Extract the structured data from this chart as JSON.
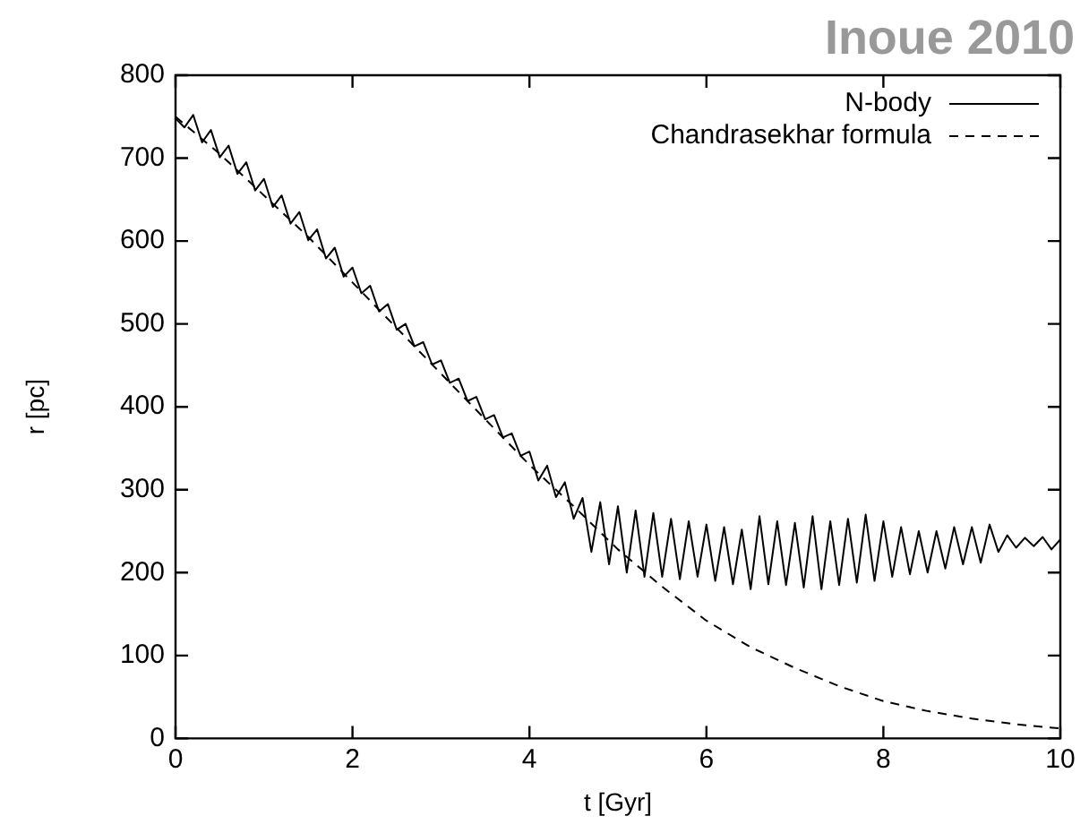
{
  "chart_data": {
    "type": "line",
    "xlabel": "t [Gyr]",
    "ylabel": "r [pc]",
    "annotations": [
      "Inoue 2010"
    ],
    "xlim": [
      0,
      10
    ],
    "xticks": [
      0,
      2,
      4,
      6,
      8,
      10
    ],
    "ylim": [
      0,
      800
    ],
    "yticks": [
      0,
      100,
      200,
      300,
      400,
      500,
      600,
      700,
      800
    ],
    "grid": false,
    "legend": "top right",
    "marker": "none",
    "series": [
      {
        "name": "N-body",
        "color": "#000000",
        "line_style": "solid",
        "x": [
          0,
          0.1,
          0.2,
          0.3,
          0.4,
          0.5,
          0.6,
          0.7,
          0.8,
          0.9,
          1,
          1.1,
          1.2,
          1.3,
          1.4,
          1.5,
          1.6,
          1.7,
          1.8,
          1.9,
          2,
          2.1,
          2.2,
          2.3,
          2.4,
          2.5,
          2.6,
          2.7,
          2.8,
          2.9,
          3,
          3.1,
          3.2,
          3.3,
          3.4,
          3.5,
          3.6,
          3.7,
          3.8,
          3.9,
          4,
          4.1,
          4.2,
          4.3,
          4.4,
          4.5,
          4.6,
          4.7,
          4.8,
          4.9,
          5,
          5.1,
          5.2,
          5.3,
          5.4,
          5.5,
          5.6,
          5.7,
          5.8,
          5.9,
          6,
          6.1,
          6.2,
          6.3,
          6.4,
          6.5,
          6.6,
          6.7,
          6.8,
          6.9,
          7,
          7.1,
          7.2,
          7.3,
          7.4,
          7.5,
          7.6,
          7.7,
          7.8,
          7.9,
          8,
          8.1,
          8.2,
          8.3,
          8.4,
          8.5,
          8.6,
          8.7,
          8.8,
          8.9,
          9,
          9.1,
          9.2,
          9.3,
          9.4,
          9.5,
          9.6,
          9.7,
          9.8,
          9.9,
          10
        ],
        "values": [
          748,
          737,
          752,
          719,
          734,
          701,
          715,
          681,
          695,
          661,
          675,
          641,
          655,
          621,
          635,
          601,
          614,
          579,
          592,
          557,
          568,
          537,
          546,
          515,
          524,
          493,
          500,
          473,
          478,
          451,
          456,
          429,
          434,
          407,
          412,
          385,
          390,
          363,
          368,
          341,
          346,
          311,
          329,
          291,
          309,
          265,
          290,
          225,
          285,
          210,
          280,
          200,
          275,
          195,
          272,
          195,
          265,
          192,
          262,
          195,
          258,
          190,
          255,
          186,
          252,
          180,
          268,
          186,
          262,
          185,
          260,
          182,
          268,
          180,
          262,
          185,
          265,
          188,
          270,
          190,
          262,
          195,
          255,
          198,
          250,
          200,
          250,
          205,
          255,
          210,
          255,
          212,
          258,
          225,
          245,
          230,
          242,
          232,
          243,
          228,
          240
        ]
      },
      {
        "name": "Chandrasekhar formula",
        "color": "#000000",
        "line_style": "dashed",
        "x": [
          0,
          0.5,
          1,
          1.5,
          2,
          2.5,
          3,
          3.5,
          4,
          4.5,
          5,
          5.5,
          6,
          6.5,
          7,
          7.5,
          8,
          8.5,
          9,
          9.5,
          10
        ],
        "values": [
          750,
          705,
          655,
          605,
          550,
          495,
          440,
          385,
          330,
          280,
          228,
          183,
          142,
          110,
          85,
          63,
          45,
          33,
          24,
          17,
          12
        ]
      }
    ]
  }
}
